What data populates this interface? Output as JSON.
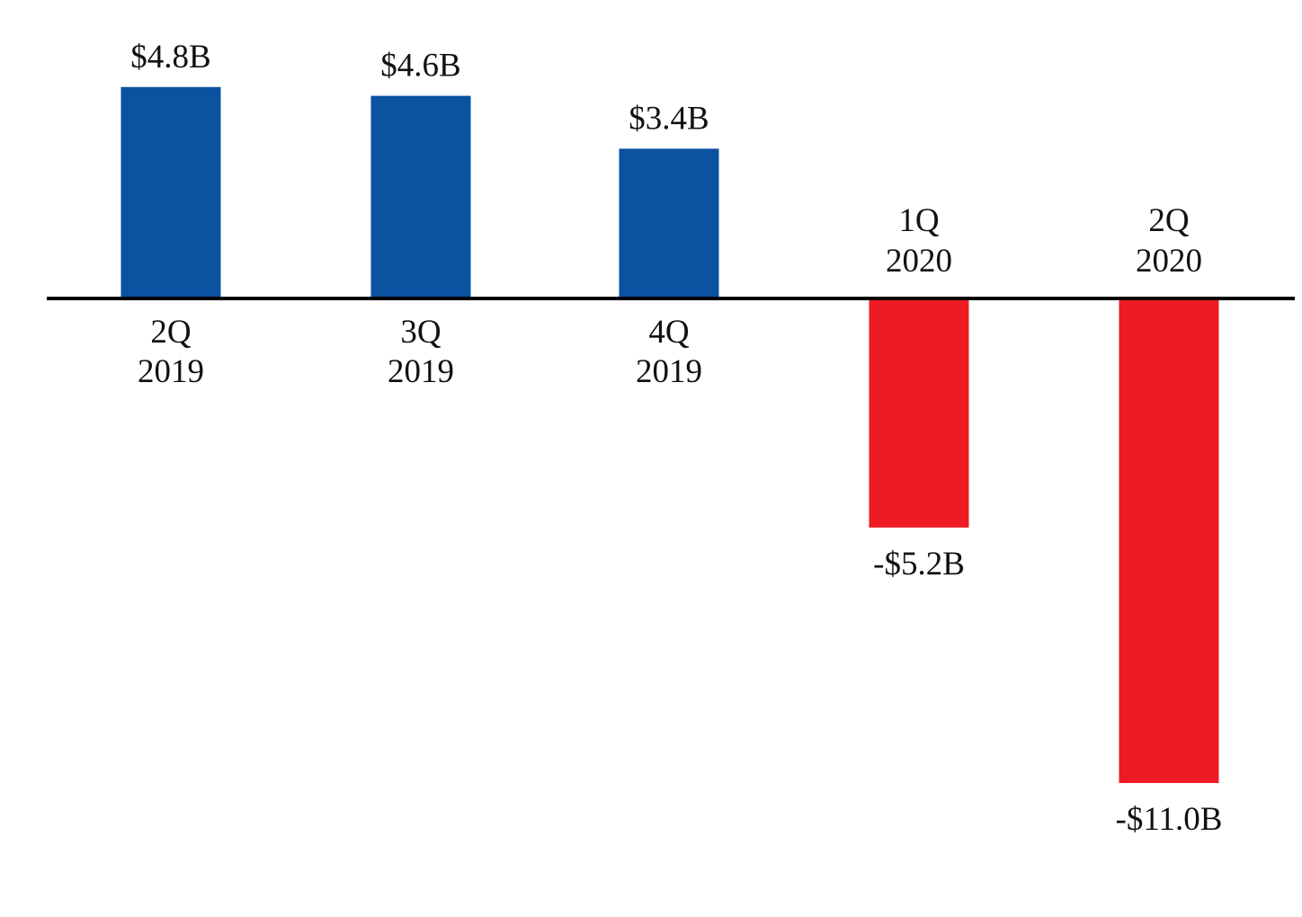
{
  "chart_data": {
    "type": "bar",
    "categories": [
      {
        "line1": "2Q",
        "line2": "2019"
      },
      {
        "line1": "3Q",
        "line2": "2019"
      },
      {
        "line1": "4Q",
        "line2": "2019"
      },
      {
        "line1": "1Q",
        "line2": "2020"
      },
      {
        "line1": "2Q",
        "line2": "2020"
      }
    ],
    "values": [
      4.8,
      4.6,
      3.4,
      -5.2,
      -11.0
    ],
    "value_labels": [
      "$4.8B",
      "$4.6B",
      "$3.4B",
      "-$5.2B",
      "-$11.0B"
    ],
    "units": "billions of dollars",
    "ylim": [
      -11.0,
      4.8
    ],
    "grid": false,
    "legend": "none",
    "colors": {
      "positive": "#0b52a0",
      "negative": "#ed1c24",
      "axis": "#000000"
    }
  }
}
